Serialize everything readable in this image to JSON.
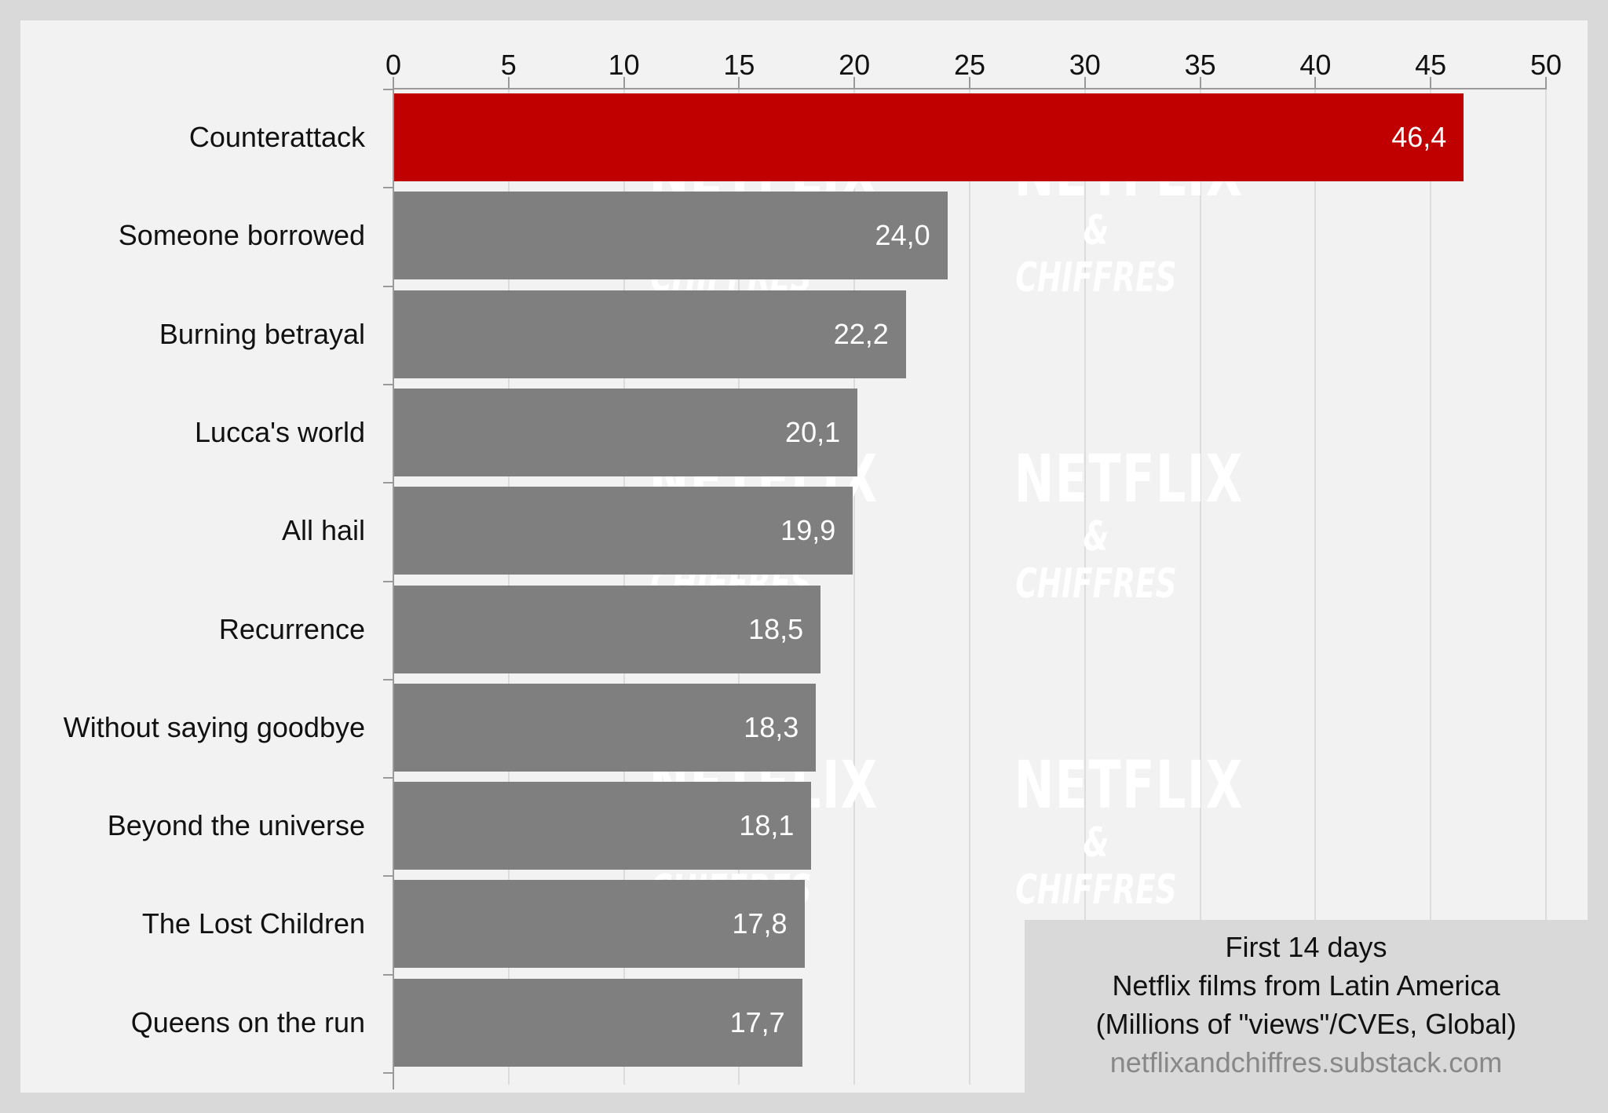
{
  "chart_data": {
    "type": "bar",
    "orientation": "horizontal",
    "categories": [
      "Counterattack",
      "Someone borrowed",
      "Burning betrayal",
      "Lucca's world",
      "All hail",
      "Recurrence",
      "Without saying goodbye",
      "Beyond the universe",
      "The Lost Children",
      "Queens on the run"
    ],
    "values": [
      46.4,
      24.0,
      22.2,
      20.1,
      19.9,
      18.5,
      18.3,
      18.1,
      17.8,
      17.7
    ],
    "value_labels": [
      "46,4",
      "24,0",
      "22,2",
      "20,1",
      "19,9",
      "18,5",
      "18,3",
      "18,1",
      "17,8",
      "17,7"
    ],
    "highlight_index": 0,
    "colors": {
      "highlight": "#c00000",
      "default": "#7f7f7f",
      "background": "#f2f2f2",
      "frame": "#d9d9d9"
    },
    "title": "First 14 days",
    "subtitle": "Netflix films from Latin America",
    "xlabel": "(Millions of \"views\"/CVEs, Global)",
    "ylabel": "",
    "xlim": [
      0,
      50
    ],
    "x_ticks": [
      "0",
      "5",
      "10",
      "15",
      "20",
      "25",
      "30",
      "35",
      "40",
      "45",
      "50"
    ],
    "axis_position": "top",
    "grid": true,
    "source": "netflixandchiffres.substack.com",
    "watermark": [
      "NETFLIX",
      "& CHIFFRES"
    ]
  },
  "legend": {
    "line1": "First 14 days",
    "line2": "Netflix films from Latin America",
    "line3": "(Millions of \"views\"/CVEs, Global)",
    "url": "netflixandchiffres.substack.com"
  },
  "watermark": {
    "top": "NETFLIX",
    "bottom": "& CHIFFRES"
  }
}
